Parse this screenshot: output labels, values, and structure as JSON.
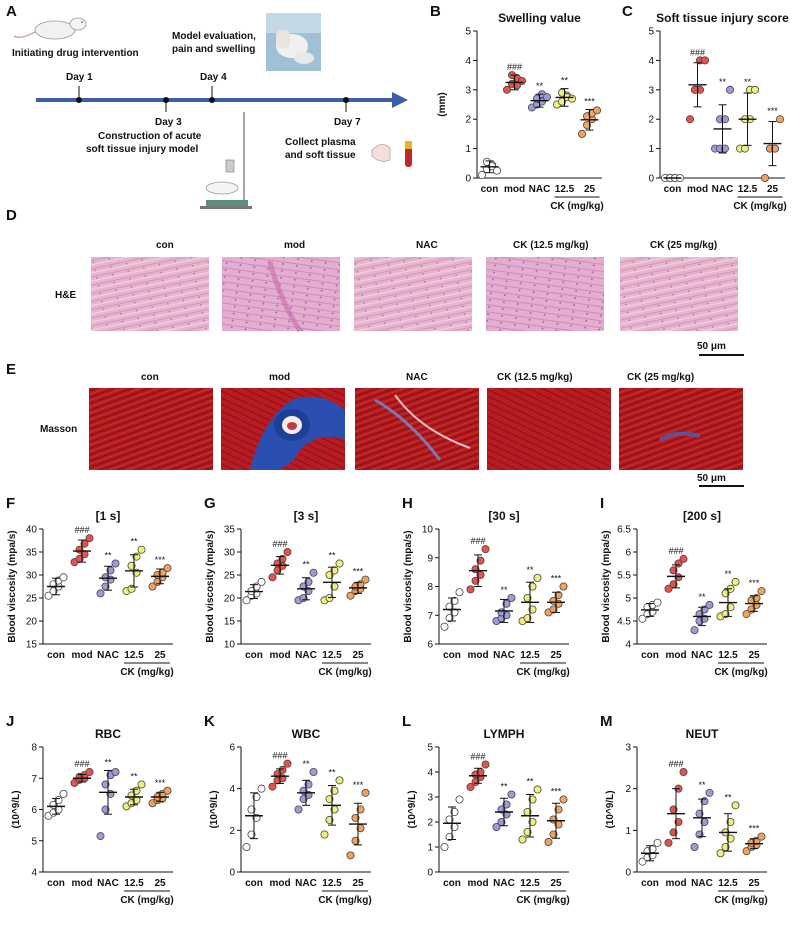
{
  "panel_letters": [
    "A",
    "B",
    "C",
    "D",
    "E",
    "F",
    "G",
    "H",
    "I",
    "J",
    "K",
    "L",
    "M"
  ],
  "schematic": {
    "init_text": "Initiating drug intervention",
    "eval_text_1": "Model evaluation,",
    "eval_text_2": "pain and swelling",
    "construct_text_1": "Construction of acute",
    "construct_text_2": "soft tissue injury model",
    "collect_text_1": "Collect plasma",
    "collect_text_2": "and soft tissue",
    "days": [
      "Day 1",
      "Day 3",
      "Day 4",
      "Day 7"
    ]
  },
  "groups": [
    "con",
    "mod",
    "NAC",
    "12.5",
    "25"
  ],
  "dose_label": "CK (mg/kg)",
  "group_colors": [
    "#ffffff",
    "#e8524a",
    "#9d9bdc",
    "#eef07a",
    "#f2a25a"
  ],
  "histology": {
    "columns": [
      "con",
      "mod",
      "NAC",
      "CK (12.5 mg/kg)",
      "CK (25 mg/kg)"
    ],
    "he_label": "H&E",
    "masson_label": "Masson",
    "scale": "50 μm"
  },
  "chart_data": [
    {
      "id": "B",
      "type": "scatter",
      "title": "Swelling value",
      "ylabel": "(mm)",
      "ylim": [
        0,
        5
      ],
      "ticks": [
        0,
        1,
        2,
        3,
        4,
        5
      ],
      "sig": [
        "",
        "###",
        "**",
        "**",
        "***"
      ],
      "means": [
        0.38,
        3.25,
        2.63,
        2.74,
        1.98
      ],
      "sd": [
        0.2,
        0.25,
        0.22,
        0.3,
        0.35
      ],
      "points": [
        [
          0.1,
          0.3,
          0.45,
          0.55,
          0.4,
          0.25
        ],
        [
          3.0,
          3.2,
          3.4,
          3.5,
          3.15,
          3.3
        ],
        [
          2.4,
          2.5,
          2.6,
          2.7,
          2.85,
          2.75
        ],
        [
          2.5,
          2.6,
          2.8,
          2.9,
          2.75,
          2.7
        ],
        [
          1.5,
          1.8,
          2.0,
          2.1,
          2.2,
          2.3
        ]
      ]
    },
    {
      "id": "C",
      "type": "scatter",
      "title": "Soft tissue injury score",
      "ylabel": "",
      "ylim": [
        0,
        5
      ],
      "ticks": [
        0,
        1,
        2,
        3,
        4,
        5
      ],
      "sig": [
        "",
        "###",
        "**",
        "**",
        "***"
      ],
      "means": [
        0,
        3.17,
        1.67,
        2.0,
        1.17
      ],
      "sd": [
        0,
        0.75,
        0.82,
        0.89,
        0.75
      ],
      "points": [
        [
          0,
          0,
          0,
          0,
          0,
          0
        ],
        [
          2,
          3,
          3,
          3,
          4,
          4
        ],
        [
          1,
          1,
          1,
          2,
          2,
          3
        ],
        [
          1,
          1,
          2,
          2,
          3,
          3
        ],
        [
          0,
          1,
          1,
          1,
          1,
          2
        ]
      ]
    },
    {
      "id": "F",
      "type": "scatter",
      "title": "[1 s]",
      "ylabel": "Blood viscosity (mpa/s)",
      "ylim": [
        15,
        40
      ],
      "ticks": [
        15,
        20,
        25,
        30,
        35,
        40
      ],
      "sig": [
        "",
        "###",
        "**",
        "**",
        "***"
      ],
      "means": [
        27.5,
        35.2,
        29.3,
        30.9,
        29.7
      ],
      "sd": [
        1.8,
        2.4,
        2.6,
        3.5,
        1.6
      ],
      "points": [
        [
          25.5,
          26.5,
          27.5,
          28.0,
          28.8,
          29.5
        ],
        [
          32.8,
          33.5,
          34.5,
          35.5,
          36.8,
          38.0
        ],
        [
          26.0,
          27.5,
          29.0,
          29.5,
          31.0,
          32.5
        ],
        [
          26.5,
          27.0,
          30.5,
          32.0,
          34.0,
          35.5
        ],
        [
          27.5,
          28.5,
          29.5,
          30.0,
          30.5,
          31.5
        ]
      ]
    },
    {
      "id": "G",
      "type": "scatter",
      "title": "[3 s]",
      "ylabel": "Blood viscosity (mpa/s)",
      "ylim": [
        10,
        35
      ],
      "ticks": [
        10,
        15,
        20,
        25,
        30,
        35
      ],
      "sig": [
        "",
        "###",
        "**",
        "**",
        "***"
      ],
      "means": [
        21.4,
        27.1,
        22.0,
        23.4,
        22.2
      ],
      "sd": [
        1.5,
        1.9,
        2.4,
        3.3,
        1.2
      ],
      "points": [
        [
          19.5,
          20.5,
          21.0,
          21.5,
          22.5,
          23.5
        ],
        [
          24.5,
          26.0,
          27.0,
          27.5,
          28.5,
          30.0
        ],
        [
          19.5,
          20.0,
          21.5,
          22.5,
          23.5,
          25.5
        ],
        [
          19.5,
          20.0,
          22.5,
          25.0,
          26.0,
          27.5
        ],
        [
          20.5,
          21.5,
          22.0,
          22.5,
          23.0,
          24.0
        ]
      ]
    },
    {
      "id": "H",
      "type": "scatter",
      "title": "[30 s]",
      "ylabel": "Blood viscosity (mpa/s)",
      "ylim": [
        6,
        10
      ],
      "ticks": [
        6,
        7,
        8,
        9,
        10
      ],
      "sig": [
        "",
        "###",
        "**",
        "**",
        "***"
      ],
      "means": [
        7.2,
        8.55,
        7.15,
        7.45,
        7.45
      ],
      "sd": [
        0.4,
        0.55,
        0.4,
        0.7,
        0.35
      ],
      "points": [
        [
          6.6,
          6.9,
          7.1,
          7.3,
          7.5,
          7.8
        ],
        [
          7.9,
          8.2,
          8.4,
          8.6,
          8.9,
          9.3
        ],
        [
          6.8,
          6.9,
          7.0,
          7.1,
          7.4,
          7.6
        ],
        [
          6.8,
          6.9,
          7.2,
          7.6,
          8.0,
          8.3
        ],
        [
          7.1,
          7.2,
          7.4,
          7.5,
          7.7,
          8.0
        ]
      ]
    },
    {
      "id": "I",
      "type": "scatter",
      "title": "[200 s]",
      "ylabel": "Blood viscosity (mpa/s)",
      "ylim": [
        4.0,
        6.5
      ],
      "ticks": [
        4.0,
        4.5,
        5.0,
        5.5,
        6.0,
        6.5
      ],
      "sig": [
        "",
        "###",
        "**",
        "**",
        "***"
      ],
      "means": [
        4.74,
        5.47,
        4.6,
        4.9,
        4.88
      ],
      "sd": [
        0.14,
        0.25,
        0.2,
        0.3,
        0.17
      ],
      "points": [
        [
          4.55,
          4.65,
          4.7,
          4.8,
          4.85,
          4.9
        ],
        [
          5.2,
          5.3,
          5.45,
          5.6,
          5.75,
          5.85
        ],
        [
          4.3,
          4.5,
          4.55,
          4.65,
          4.75,
          4.85
        ],
        [
          4.6,
          4.65,
          4.8,
          5.1,
          5.2,
          5.35
        ],
        [
          4.65,
          4.75,
          4.85,
          4.95,
          5.0,
          5.15
        ]
      ]
    },
    {
      "id": "J",
      "type": "scatter",
      "title": "RBC",
      "ylabel": "(10^9/L)",
      "ylim": [
        4,
        8
      ],
      "ticks": [
        4,
        5,
        6,
        7,
        8
      ],
      "sig": [
        "",
        "###",
        "**",
        "**",
        "***"
      ],
      "means": [
        6.1,
        7.0,
        6.55,
        6.4,
        6.4
      ],
      "sd": [
        0.25,
        0.12,
        0.7,
        0.25,
        0.15
      ],
      "points": [
        [
          5.8,
          5.9,
          6.0,
          6.15,
          6.3,
          6.5
        ],
        [
          6.85,
          6.95,
          7.0,
          7.05,
          7.1,
          7.2
        ],
        [
          5.15,
          6.0,
          6.5,
          6.8,
          7.1,
          7.2
        ],
        [
          6.1,
          6.2,
          6.3,
          6.45,
          6.6,
          6.8
        ],
        [
          6.2,
          6.3,
          6.35,
          6.4,
          6.5,
          6.6
        ]
      ]
    },
    {
      "id": "K",
      "type": "scatter",
      "title": "WBC",
      "ylabel": "(10^9/L)",
      "ylim": [
        0,
        6
      ],
      "ticks": [
        0,
        2,
        4,
        6
      ],
      "sig": [
        "",
        "###",
        "**",
        "**",
        "***"
      ],
      "means": [
        2.7,
        4.6,
        3.8,
        3.2,
        2.3
      ],
      "sd": [
        1.1,
        0.35,
        0.6,
        0.95,
        1.0
      ],
      "points": [
        [
          1.2,
          1.8,
          2.6,
          3.0,
          3.6,
          4.0
        ],
        [
          4.1,
          4.4,
          4.5,
          4.7,
          4.9,
          5.2
        ],
        [
          3.0,
          3.5,
          3.7,
          3.9,
          4.2,
          4.8
        ],
        [
          1.8,
          2.5,
          3.0,
          3.5,
          3.9,
          4.4
        ],
        [
          0.8,
          1.5,
          2.1,
          2.6,
          3.0,
          3.8
        ]
      ]
    },
    {
      "id": "L",
      "type": "scatter",
      "title": "LYMPH",
      "ylabel": "(10^9/L)",
      "ylim": [
        0,
        5
      ],
      "ticks": [
        0,
        1,
        2,
        3,
        4,
        5
      ],
      "sig": [
        "",
        "###",
        "**",
        "**",
        "***"
      ],
      "means": [
        1.95,
        3.85,
        2.4,
        2.25,
        2.05
      ],
      "sd": [
        0.65,
        0.3,
        0.55,
        0.85,
        0.7
      ],
      "points": [
        [
          1.0,
          1.4,
          1.8,
          2.1,
          2.4,
          2.9
        ],
        [
          3.4,
          3.6,
          3.8,
          3.9,
          4.0,
          4.3
        ],
        [
          1.8,
          2.0,
          2.3,
          2.5,
          2.7,
          3.1
        ],
        [
          1.3,
          1.6,
          2.0,
          2.4,
          2.9,
          3.3
        ],
        [
          1.2,
          1.5,
          1.9,
          2.1,
          2.5,
          2.9
        ]
      ]
    },
    {
      "id": "M",
      "type": "scatter",
      "title": "NEUT",
      "ylabel": "(10^9/L)",
      "ylim": [
        0,
        3
      ],
      "ticks": [
        0,
        1,
        2,
        3
      ],
      "sig": [
        "",
        "###",
        "**",
        "**",
        "***"
      ],
      "means": [
        0.45,
        1.4,
        1.3,
        0.95,
        0.68
      ],
      "sd": [
        0.18,
        0.6,
        0.45,
        0.45,
        0.12
      ],
      "points": [
        [
          0.25,
          0.35,
          0.4,
          0.5,
          0.55,
          0.7
        ],
        [
          0.7,
          0.95,
          1.2,
          1.5,
          2.0,
          2.4
        ],
        [
          0.6,
          0.9,
          1.2,
          1.4,
          1.7,
          1.9
        ],
        [
          0.45,
          0.6,
          0.8,
          0.95,
          1.2,
          1.6
        ],
        [
          0.5,
          0.6,
          0.65,
          0.7,
          0.75,
          0.85
        ]
      ]
    }
  ]
}
